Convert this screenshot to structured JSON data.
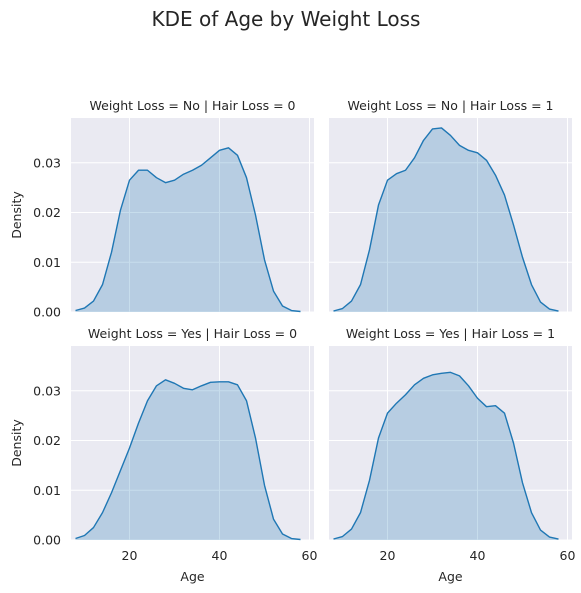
{
  "figure": {
    "title": "KDE of Age by Weight Loss"
  },
  "chart_data": {
    "type": "area",
    "title": "KDE of Age by Weight Loss",
    "facet": {
      "rows": [
        "Weight Loss = No",
        "Weight Loss = Yes"
      ],
      "cols": [
        "Hair Loss = 0",
        "Hair Loss = 1"
      ]
    },
    "xlabel": "Age",
    "ylabel": "Density",
    "xlim": [
      7,
      61
    ],
    "ylim": [
      0,
      0.039
    ],
    "xticks": [
      20,
      40,
      60
    ],
    "yticks": [
      0.0,
      0.01,
      0.02,
      0.03
    ],
    "xtick_labels": [
      "20",
      "40",
      "60"
    ],
    "ytick_labels": [
      "0.00",
      "0.01",
      "0.02",
      "0.03"
    ],
    "grid": true,
    "series_color": "#1f77b4",
    "panels": [
      {
        "title": "Weight Loss = No | Hair Loss = 0",
        "x": [
          8,
          10,
          12,
          14,
          16,
          18,
          20,
          22,
          24,
          26,
          28,
          30,
          32,
          34,
          36,
          38,
          40,
          42,
          44,
          46,
          48,
          50,
          52,
          54,
          56,
          58
        ],
        "y": [
          0.0003,
          0.0008,
          0.0022,
          0.0055,
          0.012,
          0.0205,
          0.0265,
          0.0285,
          0.0285,
          0.027,
          0.026,
          0.0265,
          0.0277,
          0.0285,
          0.0295,
          0.031,
          0.0325,
          0.033,
          0.0315,
          0.027,
          0.0195,
          0.0105,
          0.0042,
          0.0012,
          0.0003,
          0.0001
        ]
      },
      {
        "title": "Weight Loss = No | Hair Loss = 1",
        "x": [
          8,
          10,
          12,
          14,
          16,
          18,
          20,
          22,
          24,
          26,
          28,
          30,
          32,
          34,
          36,
          38,
          40,
          42,
          44,
          46,
          48,
          50,
          52,
          54,
          56,
          58
        ],
        "y": [
          0.0002,
          0.0007,
          0.0022,
          0.0055,
          0.0125,
          0.0215,
          0.0265,
          0.0278,
          0.0285,
          0.031,
          0.0345,
          0.0368,
          0.037,
          0.0355,
          0.0335,
          0.0325,
          0.032,
          0.0305,
          0.0275,
          0.0235,
          0.0175,
          0.011,
          0.0055,
          0.002,
          0.0006,
          0.0002
        ]
      },
      {
        "title": "Weight Loss = Yes | Hair Loss = 0",
        "x": [
          8,
          10,
          12,
          14,
          16,
          18,
          20,
          22,
          24,
          26,
          28,
          30,
          32,
          34,
          36,
          38,
          40,
          42,
          44,
          46,
          48,
          50,
          52,
          54,
          56,
          58
        ],
        "y": [
          0.0003,
          0.0009,
          0.0025,
          0.0055,
          0.0095,
          0.014,
          0.0185,
          0.0235,
          0.028,
          0.031,
          0.0322,
          0.0315,
          0.0305,
          0.0302,
          0.031,
          0.0317,
          0.0318,
          0.0318,
          0.0312,
          0.028,
          0.0205,
          0.011,
          0.0042,
          0.0012,
          0.0003,
          0.0001
        ]
      },
      {
        "title": "Weight Loss = Yes | Hair Loss = 1",
        "x": [
          8,
          10,
          12,
          14,
          16,
          18,
          20,
          22,
          24,
          26,
          28,
          30,
          32,
          34,
          36,
          38,
          40,
          42,
          44,
          46,
          48,
          50,
          52,
          54,
          56,
          58
        ],
        "y": [
          0.0002,
          0.0007,
          0.0022,
          0.0055,
          0.012,
          0.0205,
          0.0255,
          0.0275,
          0.0292,
          0.0312,
          0.0325,
          0.0332,
          0.0335,
          0.0337,
          0.033,
          0.031,
          0.0285,
          0.0268,
          0.027,
          0.0255,
          0.0195,
          0.0115,
          0.0055,
          0.002,
          0.0006,
          0.0002
        ]
      }
    ]
  }
}
